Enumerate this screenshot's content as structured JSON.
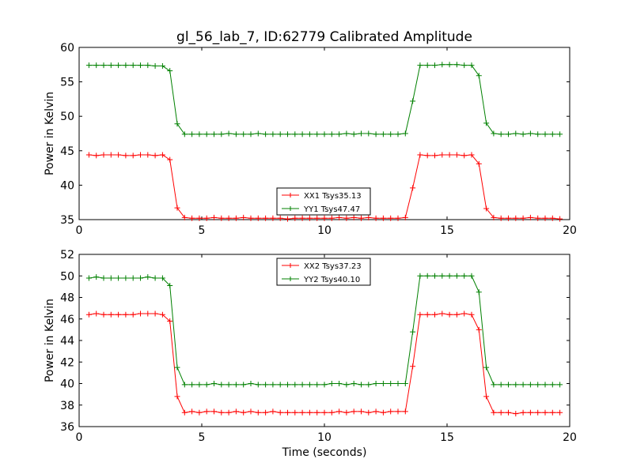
{
  "chart_data": [
    {
      "type": "line",
      "title": "gl_56_lab_7, ID:62779 Calibrated Amplitude",
      "xlabel": "",
      "ylabel": "Power in Kelvin",
      "xlim": [
        0,
        20
      ],
      "ylim": [
        35,
        60
      ],
      "xticks": [
        0,
        5,
        10,
        15,
        20
      ],
      "yticks": [
        35,
        40,
        45,
        50,
        55,
        60
      ],
      "grid": false,
      "legend_position": "lower-center",
      "x": [
        0.4,
        0.7,
        1.0,
        1.3,
        1.6,
        1.9,
        2.2,
        2.5,
        2.8,
        3.1,
        3.4,
        3.7,
        4.0,
        4.3,
        4.6,
        4.9,
        5.2,
        5.5,
        5.8,
        6.1,
        6.4,
        6.7,
        7.0,
        7.3,
        7.6,
        7.9,
        8.2,
        8.5,
        8.8,
        9.1,
        9.4,
        9.7,
        10.0,
        10.3,
        10.6,
        10.9,
        11.2,
        11.5,
        11.8,
        12.1,
        12.4,
        12.7,
        13.0,
        13.3,
        13.6,
        13.9,
        14.2,
        14.5,
        14.8,
        15.1,
        15.4,
        15.7,
        16.0,
        16.3,
        16.6,
        16.9,
        17.2,
        17.5,
        17.8,
        18.1,
        18.4,
        18.7,
        19.0,
        19.3,
        19.6
      ],
      "series": [
        {
          "name": "XX1 Tsys35.13",
          "color": "#ff0000",
          "values": [
            44.4,
            44.3,
            44.4,
            44.4,
            44.4,
            44.3,
            44.3,
            44.4,
            44.4,
            44.3,
            44.4,
            43.7,
            36.7,
            35.3,
            35.2,
            35.2,
            35.2,
            35.3,
            35.2,
            35.2,
            35.2,
            35.3,
            35.2,
            35.2,
            35.2,
            35.2,
            35.2,
            35.1,
            35.2,
            35.2,
            35.2,
            35.2,
            35.2,
            35.2,
            35.3,
            35.2,
            35.3,
            35.2,
            35.3,
            35.2,
            35.2,
            35.2,
            35.2,
            35.3,
            39.6,
            44.4,
            44.3,
            44.3,
            44.4,
            44.4,
            44.4,
            44.3,
            44.4,
            43.1,
            36.6,
            35.3,
            35.2,
            35.2,
            35.2,
            35.2,
            35.3,
            35.2,
            35.2,
            35.2,
            35.1
          ]
        },
        {
          "name": "YY1 Tsys47.47",
          "color": "#008000",
          "values": [
            57.4,
            57.4,
            57.4,
            57.4,
            57.4,
            57.4,
            57.4,
            57.4,
            57.4,
            57.3,
            57.3,
            56.6,
            48.9,
            47.4,
            47.4,
            47.4,
            47.4,
            47.4,
            47.4,
            47.5,
            47.4,
            47.4,
            47.4,
            47.5,
            47.4,
            47.4,
            47.4,
            47.4,
            47.4,
            47.4,
            47.4,
            47.4,
            47.4,
            47.4,
            47.4,
            47.5,
            47.4,
            47.5,
            47.5,
            47.4,
            47.4,
            47.4,
            47.4,
            47.5,
            52.2,
            57.4,
            57.4,
            57.4,
            57.5,
            57.5,
            57.5,
            57.4,
            57.4,
            55.9,
            49.0,
            47.5,
            47.4,
            47.4,
            47.5,
            47.4,
            47.5,
            47.4,
            47.4,
            47.4,
            47.4
          ]
        }
      ]
    },
    {
      "type": "line",
      "title": "",
      "xlabel": "Time (seconds)",
      "ylabel": "Power in Kelvin",
      "xlim": [
        0,
        20
      ],
      "ylim": [
        36,
        52
      ],
      "xticks": [
        0,
        5,
        10,
        15,
        20
      ],
      "yticks": [
        36,
        38,
        40,
        42,
        44,
        46,
        48,
        50,
        52
      ],
      "grid": false,
      "legend_position": "upper-center",
      "x": [
        0.4,
        0.7,
        1.0,
        1.3,
        1.6,
        1.9,
        2.2,
        2.5,
        2.8,
        3.1,
        3.4,
        3.7,
        4.0,
        4.3,
        4.6,
        4.9,
        5.2,
        5.5,
        5.8,
        6.1,
        6.4,
        6.7,
        7.0,
        7.3,
        7.6,
        7.9,
        8.2,
        8.5,
        8.8,
        9.1,
        9.4,
        9.7,
        10.0,
        10.3,
        10.6,
        10.9,
        11.2,
        11.5,
        11.8,
        12.1,
        12.4,
        12.7,
        13.0,
        13.3,
        13.6,
        13.9,
        14.2,
        14.5,
        14.8,
        15.1,
        15.4,
        15.7,
        16.0,
        16.3,
        16.6,
        16.9,
        17.2,
        17.5,
        17.8,
        18.1,
        18.4,
        18.7,
        19.0,
        19.3,
        19.6
      ],
      "series": [
        {
          "name": "XX2 Tsys37.23",
          "color": "#ff0000",
          "values": [
            46.4,
            46.5,
            46.4,
            46.4,
            46.4,
            46.4,
            46.4,
            46.5,
            46.5,
            46.5,
            46.4,
            45.8,
            38.8,
            37.3,
            37.4,
            37.3,
            37.4,
            37.4,
            37.3,
            37.3,
            37.4,
            37.3,
            37.4,
            37.3,
            37.3,
            37.4,
            37.3,
            37.3,
            37.3,
            37.3,
            37.3,
            37.3,
            37.3,
            37.3,
            37.4,
            37.3,
            37.4,
            37.4,
            37.3,
            37.4,
            37.3,
            37.4,
            37.4,
            37.4,
            41.6,
            46.4,
            46.4,
            46.4,
            46.5,
            46.4,
            46.4,
            46.5,
            46.4,
            45.0,
            38.8,
            37.3,
            37.3,
            37.3,
            37.2,
            37.3,
            37.3,
            37.3,
            37.3,
            37.3,
            37.3
          ]
        },
        {
          "name": "YY2 Tsys40.10",
          "color": "#008000",
          "values": [
            49.8,
            49.9,
            49.8,
            49.8,
            49.8,
            49.8,
            49.8,
            49.8,
            49.9,
            49.8,
            49.8,
            49.1,
            41.5,
            39.9,
            39.9,
            39.9,
            39.9,
            40.0,
            39.9,
            39.9,
            39.9,
            39.9,
            40.0,
            39.9,
            39.9,
            39.9,
            39.9,
            39.9,
            39.9,
            39.9,
            39.9,
            39.9,
            39.9,
            40.0,
            40.0,
            39.9,
            40.0,
            39.9,
            39.9,
            40.0,
            40.0,
            40.0,
            40.0,
            40.0,
            44.8,
            50.0,
            50.0,
            50.0,
            50.0,
            50.0,
            50.0,
            50.0,
            50.0,
            48.5,
            41.5,
            39.9,
            39.9,
            39.9,
            39.9,
            39.9,
            39.9,
            39.9,
            39.9,
            39.9,
            39.9
          ]
        }
      ]
    }
  ]
}
